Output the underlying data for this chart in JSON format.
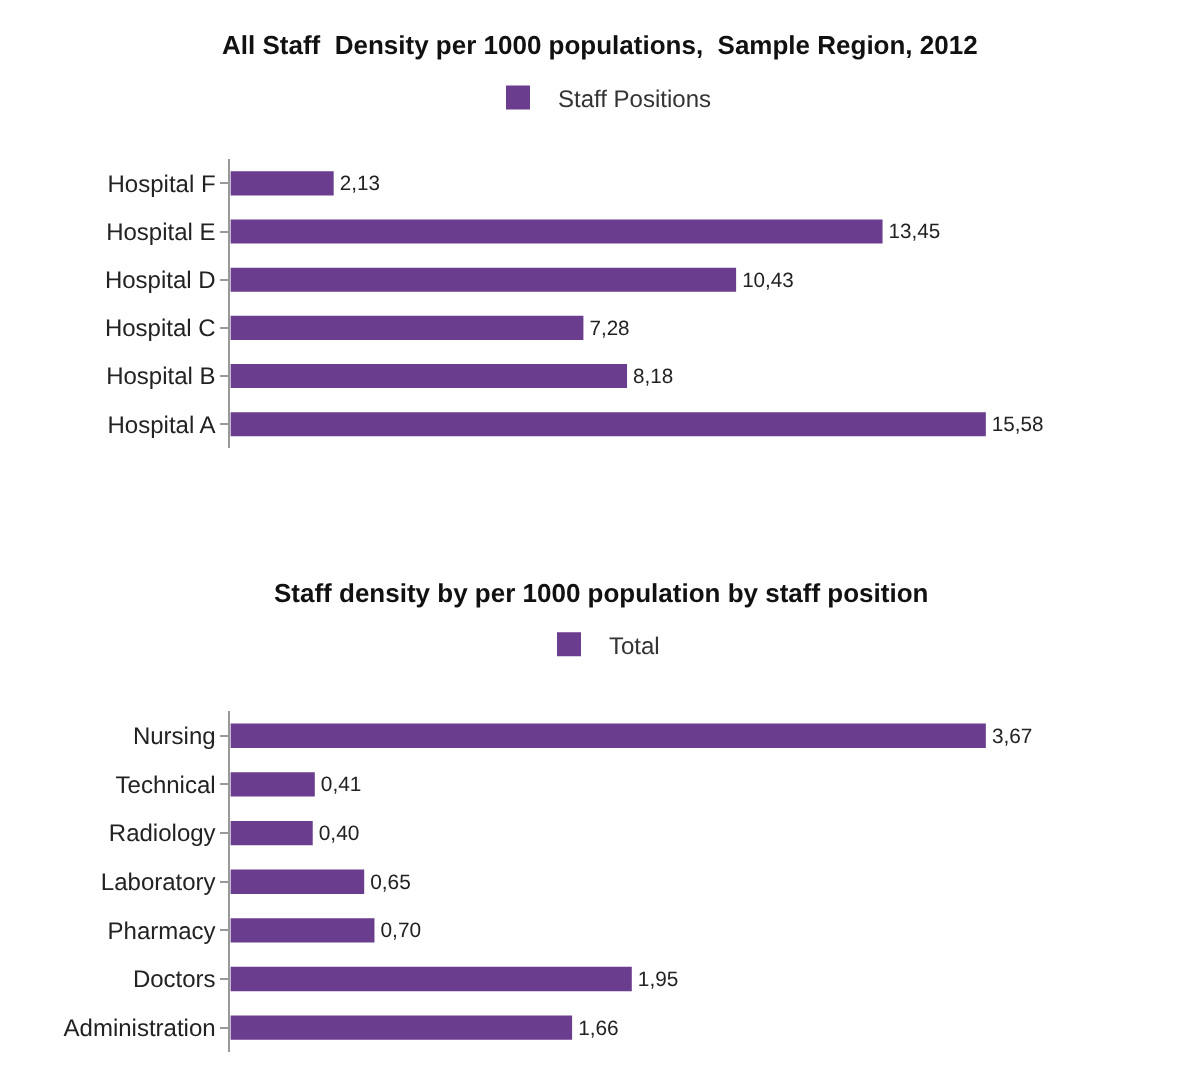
{
  "chart_data": [
    {
      "type": "bar",
      "orientation": "horizontal",
      "title": "All Staff  Density per 1000 populations,  Sample Region, 2012",
      "categories": [
        "Hospital F",
        "Hospital E",
        "Hospital D",
        "Hospital C",
        "Hospital B",
        "Hospital A"
      ],
      "series": [
        {
          "name": "Staff Positions",
          "color": "#6b3d8e",
          "values": [
            2.13,
            13.45,
            10.43,
            7.28,
            8.18,
            15.58
          ],
          "value_labels": [
            "2,13",
            "13,45",
            "10,43",
            "7,28",
            "8,18",
            "15,58"
          ]
        }
      ],
      "legend": "top",
      "tick_labels": "y"
    },
    {
      "type": "bar",
      "orientation": "horizontal",
      "title": "Staff density by per 1000 population by staff position",
      "categories": [
        "Nursing",
        "Technical",
        "Radiology",
        "Laboratory",
        "Pharmacy",
        "Doctors",
        "Administration"
      ],
      "series": [
        {
          "name": "Total",
          "color": "#6b3d8e",
          "values": [
            3.67,
            0.41,
            0.4,
            0.65,
            0.7,
            1.95,
            1.66
          ],
          "value_labels": [
            "3,67",
            "0,41",
            "0,40",
            "0,65",
            "0,70",
            "1,95",
            "1,66"
          ]
        }
      ],
      "legend": "top",
      "tick_labels": "y"
    }
  ]
}
